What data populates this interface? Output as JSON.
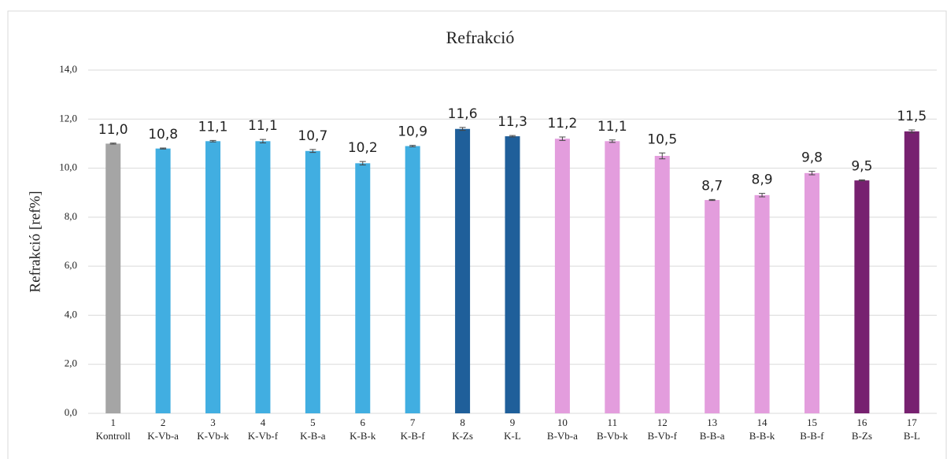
{
  "chart_data": {
    "type": "bar",
    "title": "Refrakció",
    "y_label": "Refrakció [ref%]",
    "categories": [
      [
        "1",
        "Kontroll"
      ],
      [
        "2",
        "K-Vb-a"
      ],
      [
        "3",
        "K-Vb-k"
      ],
      [
        "4",
        "K-Vb-f"
      ],
      [
        "5",
        "K-B-a"
      ],
      [
        "6",
        "K-B-k"
      ],
      [
        "7",
        "K-B-f"
      ],
      [
        "8",
        "K-Zs"
      ],
      [
        "9",
        "K-L"
      ],
      [
        "10",
        "B-Vb-a"
      ],
      [
        "11",
        "B-Vb-k"
      ],
      [
        "12",
        "B-Vb-f"
      ],
      [
        "13",
        "B-B-a"
      ],
      [
        "14",
        "B-B-k"
      ],
      [
        "15",
        "B-B-f"
      ],
      [
        "16",
        "B-Zs"
      ],
      [
        "17",
        "B-L"
      ]
    ],
    "values": [
      11.0,
      10.8,
      11.1,
      11.1,
      10.7,
      10.2,
      10.9,
      11.6,
      11.3,
      11.2,
      11.1,
      10.5,
      8.7,
      8.9,
      9.8,
      9.5,
      11.5
    ],
    "value_labels": [
      "11,0",
      "10,8",
      "11,1",
      "11,1",
      "10,7",
      "10,2",
      "10,9",
      "11,6",
      "11,3",
      "11,2",
      "11,1",
      "10,5",
      "8,7",
      "8,9",
      "9,8",
      "9,5",
      "11,5"
    ],
    "errors": [
      0.02,
      0.02,
      0.03,
      0.07,
      0.06,
      0.07,
      0.03,
      0.06,
      0.03,
      0.07,
      0.05,
      0.12,
      0.02,
      0.07,
      0.07,
      0.02,
      0.06
    ],
    "colors": [
      "#a5a5a5",
      "#41aee1",
      "#41aee1",
      "#41aee1",
      "#41aee1",
      "#41aee1",
      "#41aee1",
      "#1f5f9a",
      "#1f5f9a",
      "#e39ddd",
      "#e39ddd",
      "#e39ddd",
      "#e39ddd",
      "#e39ddd",
      "#e39ddd",
      "#772170",
      "#772170"
    ],
    "ylim": [
      0,
      14
    ],
    "yticks": [
      {
        "value": 0,
        "label": "0,0"
      },
      {
        "value": 2,
        "label": "2,0"
      },
      {
        "value": 4,
        "label": "4,0"
      },
      {
        "value": 6,
        "label": "6,0"
      },
      {
        "value": 8,
        "label": "8,0"
      },
      {
        "value": 10,
        "label": "10,0"
      },
      {
        "value": 12,
        "label": "12,0"
      },
      {
        "value": 14,
        "label": "14,0"
      }
    ],
    "grid": true
  }
}
